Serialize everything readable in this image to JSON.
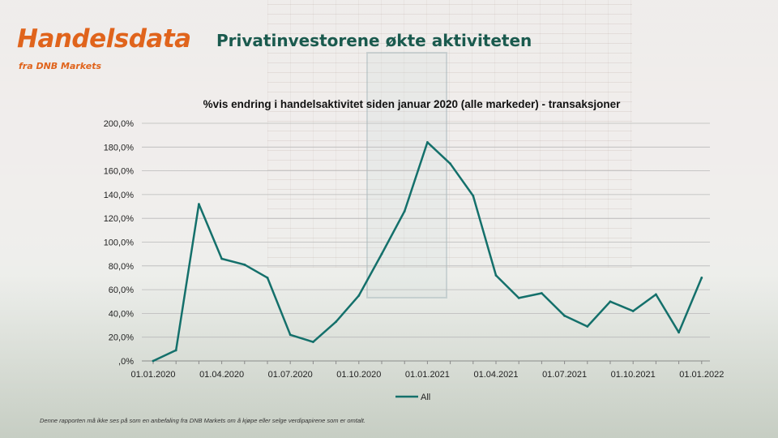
{
  "brand": {
    "name": "Handelsdata",
    "subtitle": "fra DNB Markets"
  },
  "headline": "Privatinvestorene økte aktiviteten",
  "disclaimer": "Denne rapporten må ikke ses på som en anbefaling fra DNB Markets om å kjøpe eller selge verdipapirene som er omtalt.",
  "colors": {
    "brand_orange": "#e0641c",
    "headline_green": "#1a5a4e",
    "series": "#14706b"
  },
  "chart_data": {
    "type": "line",
    "title": "%vis endring i handelsaktivitet siden januar 2020 (alle markeder) - transaksjoner",
    "xlabel": "",
    "ylabel": "",
    "ylim": [
      0,
      200
    ],
    "yticks": [
      "200,0%",
      "180,0%",
      "160,0%",
      "140,0%",
      "120,0%",
      "100,0%",
      "80,0%",
      "60,0%",
      "40,0%",
      "20,0%",
      ",0%"
    ],
    "xticks": [
      "01.01.2020",
      "01.04.2020",
      "01.07.2020",
      "01.10.2020",
      "01.01.2021",
      "01.04.2021",
      "01.07.2021",
      "01.10.2021",
      "01.01.2022"
    ],
    "grid": true,
    "legend_position": "bottom",
    "x": [
      "2020-01",
      "2020-02",
      "2020-03",
      "2020-04",
      "2020-05",
      "2020-06",
      "2020-07",
      "2020-08",
      "2020-09",
      "2020-10",
      "2020-11",
      "2020-12",
      "2021-01",
      "2021-02",
      "2021-03",
      "2021-04",
      "2021-05",
      "2021-06",
      "2021-07",
      "2021-08",
      "2021-09",
      "2021-10",
      "2021-11",
      "2021-12",
      "2022-01"
    ],
    "series": [
      {
        "name": "All",
        "color": "#14706b",
        "values": [
          0,
          9,
          132,
          86,
          81,
          70,
          22,
          16,
          33,
          55,
          90,
          126,
          184,
          166,
          139,
          72,
          53,
          57,
          38,
          29,
          50,
          42,
          56,
          24,
          70
        ]
      }
    ]
  }
}
